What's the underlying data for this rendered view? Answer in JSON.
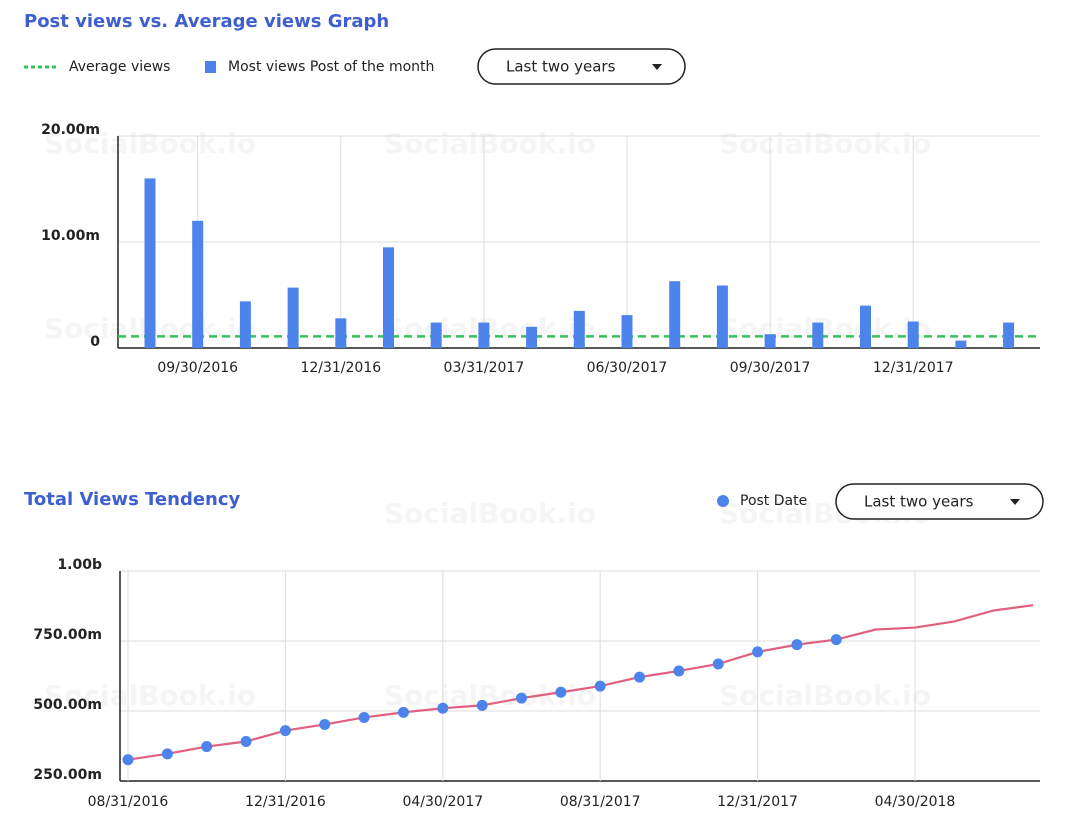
{
  "watermark": "SocialBook.io",
  "chart_data": [
    {
      "type": "bar",
      "title": "Post views vs. Average views Graph",
      "dropdown": "Last two years",
      "categories": [
        null,
        "09/30/2016",
        null,
        null,
        "12/31/2016",
        null,
        null,
        "03/31/2017",
        null,
        null,
        "06/30/2017",
        null,
        null,
        "09/30/2017",
        null,
        null,
        "12/31/2017",
        null,
        null
      ],
      "average": {
        "name": "Average views",
        "value": 1100000,
        "color": "#35c25a"
      },
      "series": [
        {
          "name": "Most views Post of the month",
          "color": "#4c84ec",
          "values": [
            16000000,
            12000000,
            4400000,
            5700000,
            2800000,
            9500000,
            2400000,
            2400000,
            2000000,
            3500000,
            3100000,
            6300000,
            5900000,
            1300000,
            2400000,
            4000000,
            2500000,
            700000,
            2400000
          ]
        }
      ],
      "ylim": [
        0,
        20000000
      ],
      "yticks": [
        {
          "value": 0,
          "label": "0"
        },
        {
          "value": 10000000,
          "label": "10.00m"
        },
        {
          "value": 20000000,
          "label": "20.00m"
        }
      ],
      "grid": true
    },
    {
      "type": "line",
      "title": "Total Views Tendency",
      "dropdown": "Last two years",
      "categories": [
        "08/31/2016",
        null,
        null,
        null,
        "12/31/2016",
        null,
        null,
        null,
        "04/30/2017",
        null,
        null,
        null,
        "08/31/2017",
        null,
        null,
        null,
        "12/31/2017",
        null,
        null,
        null,
        "04/30/2018",
        null,
        null,
        null
      ],
      "series": [
        {
          "color": "#e0607e",
          "values": [
            326000000,
            347000000,
            373000000,
            391000000,
            430000000,
            452000000,
            477000000,
            495000000,
            510000000,
            520000000,
            546000000,
            567000000,
            589000000,
            621000000,
            643000000,
            668000000,
            711000000,
            737000000,
            755000000,
            791000000,
            798000000,
            820000000,
            859000000,
            878000000
          ]
        },
        {
          "name": "Post Date",
          "color": "#4c84ec",
          "values": [
            326000000,
            347000000,
            373000000,
            391000000,
            430000000,
            452000000,
            477000000,
            495000000,
            510000000,
            520000000,
            546000000,
            567000000,
            589000000,
            621000000,
            643000000,
            668000000,
            711000000,
            737000000,
            755000000,
            null,
            null,
            null,
            null,
            null
          ]
        }
      ],
      "ylim": [
        250000000,
        1000000000
      ],
      "yticks": [
        {
          "value": 250000000,
          "label": "250.00m"
        },
        {
          "value": 500000000,
          "label": "500.00m"
        },
        {
          "value": 750000000,
          "label": "750.00m"
        },
        {
          "value": 1000000000,
          "label": "1.00b"
        }
      ],
      "grid": true
    }
  ]
}
